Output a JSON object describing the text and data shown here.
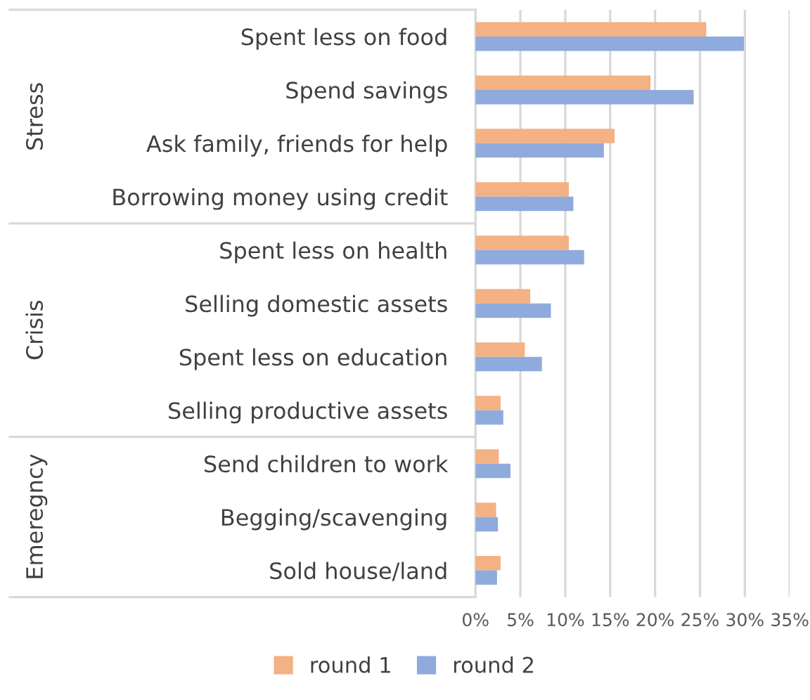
{
  "chart_data": {
    "type": "bar",
    "orientation": "horizontal",
    "categories": [
      "Spent less on food",
      "Spend savings",
      "Ask family, friends for help",
      "Borrowing money using credit",
      "Spent less on health",
      "Selling domestic assets",
      "Spent less on education",
      "Selling productive assets",
      "Send children to work",
      "Begging/scavenging",
      "Sold house/land"
    ],
    "series": [
      {
        "name": "round 1",
        "color": "#f4b183",
        "values": [
          25.7,
          19.5,
          15.5,
          10.4,
          10.4,
          6.1,
          5.5,
          2.8,
          2.6,
          2.3,
          2.8
        ]
      },
      {
        "name": "round 2",
        "color": "#8faadc",
        "values": [
          29.9,
          24.3,
          14.3,
          10.9,
          12.1,
          8.4,
          7.4,
          3.1,
          3.9,
          2.5,
          2.4
        ]
      }
    ],
    "xlim": [
      0,
      35
    ],
    "xticks": [
      {
        "value": 0,
        "label": "0%"
      },
      {
        "value": 5,
        "label": "5%"
      },
      {
        "value": 10,
        "label": "10%"
      },
      {
        "value": 15,
        "label": "15%"
      },
      {
        "value": 20,
        "label": "20%"
      },
      {
        "value": 25,
        "label": "25%"
      },
      {
        "value": 30,
        "label": "30%"
      },
      {
        "value": 35,
        "label": "35%"
      }
    ],
    "annotations": [
      "Stress",
      "Crisis",
      "Emeregncy"
    ],
    "grid": "x",
    "legend": "bottom"
  }
}
